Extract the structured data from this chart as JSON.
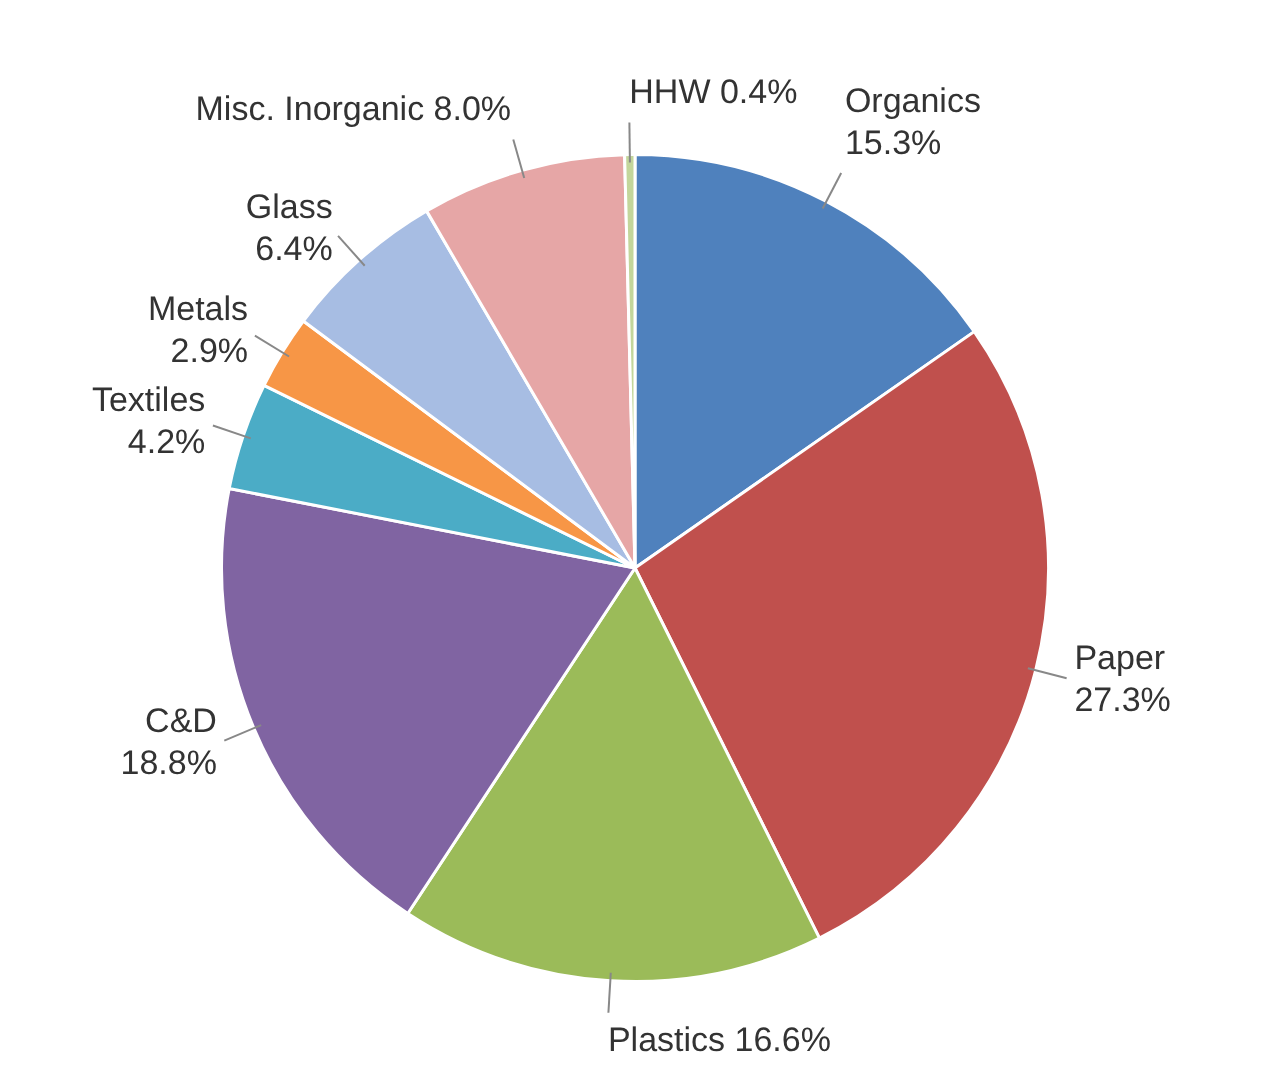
{
  "chart_data": {
    "type": "pie",
    "categories": [
      "Organics",
      "Paper",
      "Plastics",
      "C&D",
      "Textiles",
      "Metals",
      "Glass",
      "Misc. Inorganic",
      "HHW"
    ],
    "values": [
      15.3,
      27.3,
      16.6,
      18.8,
      4.2,
      2.9,
      6.4,
      8.0,
      0.4
    ],
    "value_labels": [
      "15.3%",
      "27.3%",
      "16.6%",
      "18.8%",
      "4.2%",
      "2.9%",
      "6.4%",
      "8.0%",
      "0.4%"
    ],
    "colors": [
      "#4f81bd",
      "#c0504d",
      "#9bbb59",
      "#8064a2",
      "#4bacc6",
      "#f79646",
      "#a7bde3",
      "#e6a6a6",
      "#c3d69b"
    ],
    "legend": false
  }
}
